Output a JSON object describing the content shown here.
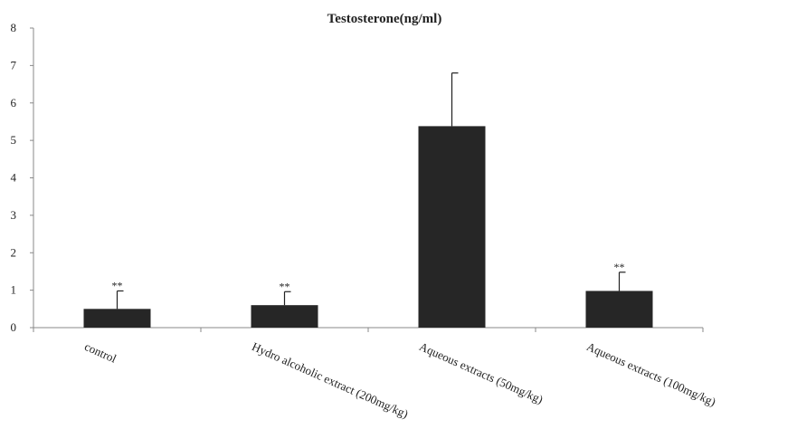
{
  "chart_data": {
    "type": "bar",
    "title": "Testosterone(ng/ml)",
    "xlabel": "",
    "ylabel": "",
    "ylim": [
      0,
      8
    ],
    "yticks": [
      0,
      1,
      2,
      3,
      4,
      5,
      6,
      7,
      8
    ],
    "categories": [
      "control",
      "Hydro alcoholic extract (200mg/kg)",
      "Aqueous extracts (50mg/kg)",
      "Aqueous extracts (100mg/kg)"
    ],
    "values": [
      0.5,
      0.6,
      5.38,
      0.98
    ],
    "error_plus": [
      0.48,
      0.36,
      1.42,
      0.5
    ],
    "annotations": [
      "**",
      "**",
      "",
      "**"
    ],
    "bar_color": "#262626",
    "grid": false
  }
}
